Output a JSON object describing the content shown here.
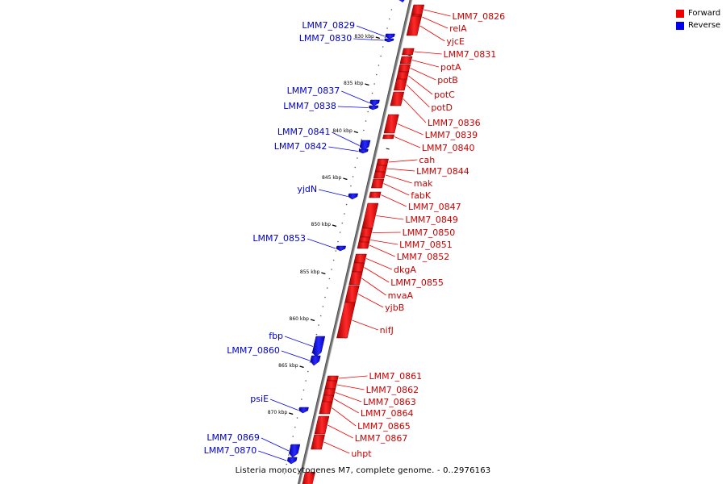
{
  "legend": [
    {
      "label": "Forward",
      "color": "#ee0000"
    },
    {
      "label": "Reverse",
      "color": "#0000ee"
    }
  ],
  "caption": "Listeria monocytogenes M7, complete genome. - 0..2976163",
  "ticks": [
    "830 kbp",
    "835 kbp",
    "840 kbp",
    "845 kbp",
    "850 kbp",
    "855 kbp",
    "860 kbp",
    "865 kbp",
    "870 kbp"
  ],
  "forward_genes": [
    "LMM7_0826",
    "relA",
    "yjcE",
    "LMM7_0831",
    "potA",
    "potB",
    "potC",
    "potD",
    "LMM7_0836",
    "LMM7_0839",
    "LMM7_0840",
    "cah",
    "LMM7_0844",
    "mak",
    "fabK",
    "LMM7_0847",
    "LMM7_0849",
    "LMM7_0850",
    "LMM7_0851",
    "LMM7_0852",
    "dkgA",
    "LMM7_0855",
    "mvaA",
    "yjbB",
    "nifJ",
    "LMM7_0861",
    "LMM7_0862",
    "LMM7_0863",
    "LMM7_0864",
    "LMM7_0865",
    "LMM7_0867",
    "uhpt"
  ],
  "reverse_genes": [
    "LMM7_0829",
    "LMM7_0830",
    "LMM7_0837",
    "LMM7_0838",
    "LMM7_0841",
    "LMM7_0842",
    "yjdN",
    "LMM7_0853",
    "fbp",
    "LMM7_0860",
    "psiE",
    "LMM7_0869",
    "LMM7_0870"
  ]
}
